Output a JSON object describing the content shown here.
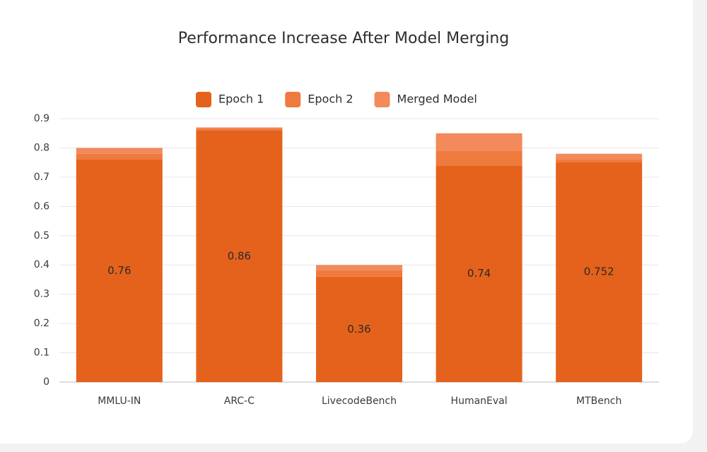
{
  "chart_data": {
    "type": "stacked_bar",
    "title": "Performance Increase After Model Merging",
    "categories": [
      "MMLU-IN",
      "ARC-C",
      "LivecodeBench",
      "HumanEval",
      "MTBench"
    ],
    "series": [
      {
        "name": "Epoch 1",
        "color": "#e5621c",
        "values": [
          0.76,
          0.86,
          0.36,
          0.74,
          0.752
        ]
      },
      {
        "name": "Epoch 2",
        "color": "#ee7a3e",
        "values": [
          0.02,
          0.005,
          0.02,
          0.05,
          0.008
        ]
      },
      {
        "name": "Merged Model",
        "color": "#f28a5b",
        "values": [
          0.02,
          0.005,
          0.02,
          0.06,
          0.02
        ]
      }
    ],
    "data_labels_series": 0,
    "ylim": [
      0,
      0.9
    ],
    "yticks": [
      0,
      0.1,
      0.2,
      0.3,
      0.4,
      0.5,
      0.6,
      0.7,
      0.8,
      0.9
    ],
    "grid": true
  }
}
